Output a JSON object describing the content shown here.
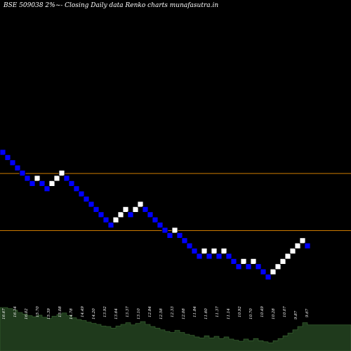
{
  "chart_data": {
    "type": "renko",
    "title": "BSE 509038  2%~-  Closing Daily data  Renko  charts munafasutra.in",
    "bricks": [
      {
        "dir": "down"
      },
      {
        "dir": "down"
      },
      {
        "dir": "down"
      },
      {
        "dir": "down"
      },
      {
        "dir": "down"
      },
      {
        "dir": "down"
      },
      {
        "dir": "down"
      },
      {
        "dir": "up"
      },
      {
        "dir": "down"
      },
      {
        "dir": "down"
      },
      {
        "dir": "up"
      },
      {
        "dir": "up"
      },
      {
        "dir": "up"
      },
      {
        "dir": "down"
      },
      {
        "dir": "down"
      },
      {
        "dir": "down"
      },
      {
        "dir": "down"
      },
      {
        "dir": "down"
      },
      {
        "dir": "down"
      },
      {
        "dir": "down"
      },
      {
        "dir": "down"
      },
      {
        "dir": "down"
      },
      {
        "dir": "down"
      },
      {
        "dir": "up"
      },
      {
        "dir": "up"
      },
      {
        "dir": "up"
      },
      {
        "dir": "down"
      },
      {
        "dir": "up"
      },
      {
        "dir": "up"
      },
      {
        "dir": "down"
      },
      {
        "dir": "down"
      },
      {
        "dir": "down"
      },
      {
        "dir": "down"
      },
      {
        "dir": "down"
      },
      {
        "dir": "down"
      },
      {
        "dir": "up"
      },
      {
        "dir": "down"
      },
      {
        "dir": "down"
      },
      {
        "dir": "down"
      },
      {
        "dir": "down"
      },
      {
        "dir": "down"
      },
      {
        "dir": "up"
      },
      {
        "dir": "down"
      },
      {
        "dir": "up"
      },
      {
        "dir": "down"
      },
      {
        "dir": "up"
      },
      {
        "dir": "down"
      },
      {
        "dir": "down"
      },
      {
        "dir": "down"
      },
      {
        "dir": "up"
      },
      {
        "dir": "down"
      },
      {
        "dir": "up"
      },
      {
        "dir": "down"
      },
      {
        "dir": "down"
      },
      {
        "dir": "down"
      },
      {
        "dir": "up"
      },
      {
        "dir": "up"
      },
      {
        "dir": "up"
      },
      {
        "dir": "up"
      },
      {
        "dir": "up"
      },
      {
        "dir": "up"
      },
      {
        "dir": "up"
      },
      {
        "dir": "down"
      }
    ],
    "bricks_net_level": [
      0,
      -1,
      -2,
      -3,
      -4,
      -5,
      -6,
      -5,
      -6,
      -7,
      -6,
      -5,
      -4,
      -5,
      -6,
      -7,
      -8,
      -9,
      -10,
      -11,
      -12,
      -13,
      -14,
      -13,
      -12,
      -11,
      -12,
      -11,
      -10,
      -11,
      -12,
      -13,
      -14,
      -15,
      -16,
      -15,
      -16,
      -17,
      -18,
      -19,
      -20,
      -19,
      -20,
      -19,
      -20,
      -19,
      -20,
      -21,
      -22,
      -21,
      -22,
      -21,
      -22,
      -23,
      -24,
      -23,
      -22,
      -21,
      -20,
      -19,
      -18,
      -17,
      -18
    ],
    "reference_lines": [
      {
        "brick_level": -4,
        "color": "#cc7a00"
      },
      {
        "brick_level": -15,
        "color": "#cc7a00"
      }
    ],
    "price_labels": [
      "16.67",
      "16.34",
      "16.02",
      "15.70",
      "15.39",
      "15.08",
      "14.78",
      "14.49",
      "14.20",
      "13.92",
      "13.64",
      "13.37",
      "13.10",
      "12.84",
      "12.58",
      "12.33",
      "12.08",
      "11.84",
      "11.60",
      "11.37",
      "11.14",
      "10.92",
      "10.70",
      "10.49",
      "10.28",
      "10.07",
      "9.87",
      "9.67"
    ],
    "volume": [
      8,
      7.8,
      7.5,
      7.1,
      6.8,
      6.5,
      6.3,
      6.6,
      6.2,
      6,
      6.4,
      6.7,
      7,
      6.5,
      6.1,
      5.8,
      5.6,
      5.3,
      5.1,
      4.9,
      4.6,
      4.5,
      4.2,
      4.6,
      4.9,
      5.2,
      4.8,
      5.1,
      5.4,
      4.9,
      4.5,
      4.2,
      3.9,
      3.6,
      3.4,
      3.8,
      3.4,
      3.1,
      2.9,
      2.6,
      2.4,
      2.8,
      2.4,
      2.7,
      2.3,
      2.6,
      2.2,
      2,
      1.8,
      2.2,
      1.9,
      2.3,
      1.9,
      1.7,
      1.5,
      1.9,
      2.3,
      2.8,
      3.3,
      3.9,
      4.5,
      5.2,
      4.8
    ],
    "colors": {
      "up": "#ffffff",
      "down": "#0000ff",
      "volume_fill": "#1f3a1c",
      "volume_line": "#3c6b35"
    }
  }
}
